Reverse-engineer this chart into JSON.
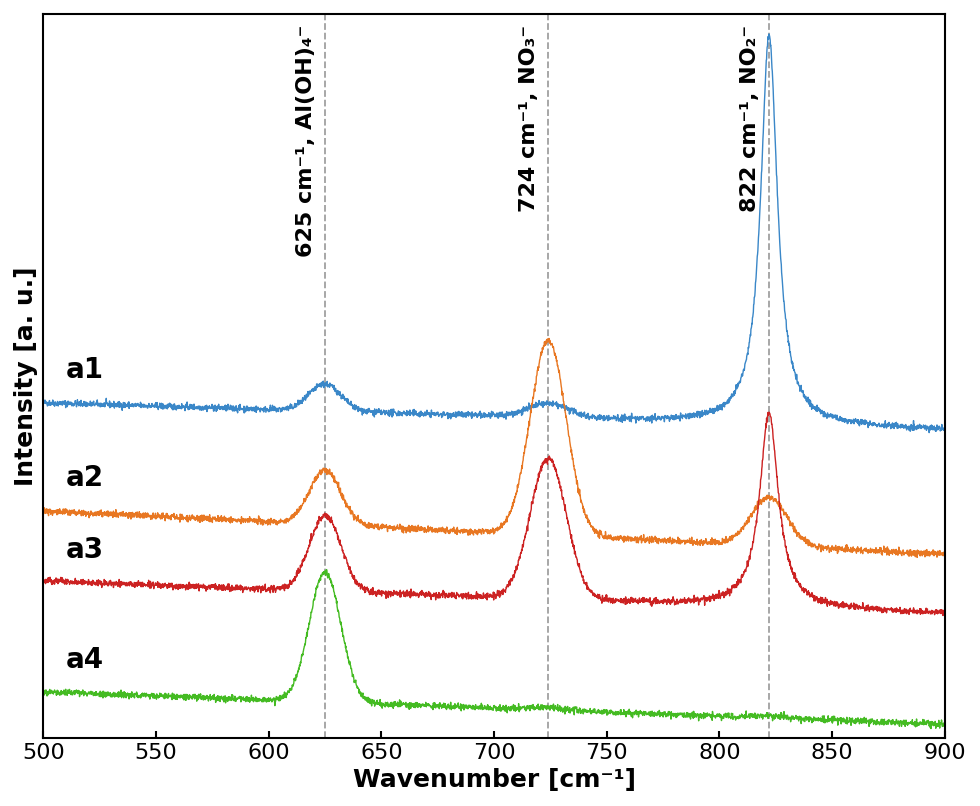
{
  "x_min": 500,
  "x_max": 900,
  "xlabel": "Wavenumber [cm⁻¹]",
  "ylabel": "Intensity [a. u.]",
  "vlines": [
    625,
    724,
    822
  ],
  "vline_labels": [
    "625 cm⁻¹, Al(OH)₄⁻",
    "724 cm⁻¹, NO₃⁻",
    "822 cm⁻¹, NO₂⁻"
  ],
  "series_colors": [
    "#3a87c8",
    "#e87722",
    "#cc2222",
    "#44bb22"
  ],
  "series_labels": [
    "a1",
    "a2",
    "a3",
    "a4"
  ],
  "noise_scale": 0.003,
  "figsize": [
    9.8,
    8.06
  ],
  "dpi": 100,
  "label_fontsize": 18,
  "tick_fontsize": 16,
  "annotation_fontsize": 16,
  "series_label_fontsize": 20
}
